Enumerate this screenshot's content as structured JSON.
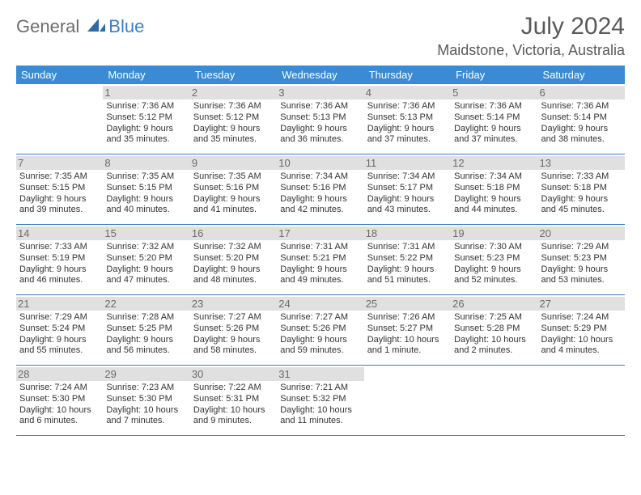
{
  "brand": {
    "part1": "General",
    "part2": "Blue"
  },
  "title": "July 2024",
  "location": "Maidstone, Victoria, Australia",
  "colors": {
    "header_bg": "#3b8bd4",
    "accent": "#3b7fc4",
    "daynum_bg": "#e0e0e0",
    "text": "#333333",
    "muted": "#6a6a6a"
  },
  "day_names": [
    "Sunday",
    "Monday",
    "Tuesday",
    "Wednesday",
    "Thursday",
    "Friday",
    "Saturday"
  ],
  "weeks": [
    [
      {
        "n": "",
        "lines": []
      },
      {
        "n": "1",
        "lines": [
          "Sunrise: 7:36 AM",
          "Sunset: 5:12 PM",
          "Daylight: 9 hours",
          "and 35 minutes."
        ]
      },
      {
        "n": "2",
        "lines": [
          "Sunrise: 7:36 AM",
          "Sunset: 5:12 PM",
          "Daylight: 9 hours",
          "and 35 minutes."
        ]
      },
      {
        "n": "3",
        "lines": [
          "Sunrise: 7:36 AM",
          "Sunset: 5:13 PM",
          "Daylight: 9 hours",
          "and 36 minutes."
        ]
      },
      {
        "n": "4",
        "lines": [
          "Sunrise: 7:36 AM",
          "Sunset: 5:13 PM",
          "Daylight: 9 hours",
          "and 37 minutes."
        ]
      },
      {
        "n": "5",
        "lines": [
          "Sunrise: 7:36 AM",
          "Sunset: 5:14 PM",
          "Daylight: 9 hours",
          "and 37 minutes."
        ]
      },
      {
        "n": "6",
        "lines": [
          "Sunrise: 7:36 AM",
          "Sunset: 5:14 PM",
          "Daylight: 9 hours",
          "and 38 minutes."
        ]
      }
    ],
    [
      {
        "n": "7",
        "lines": [
          "Sunrise: 7:35 AM",
          "Sunset: 5:15 PM",
          "Daylight: 9 hours",
          "and 39 minutes."
        ]
      },
      {
        "n": "8",
        "lines": [
          "Sunrise: 7:35 AM",
          "Sunset: 5:15 PM",
          "Daylight: 9 hours",
          "and 40 minutes."
        ]
      },
      {
        "n": "9",
        "lines": [
          "Sunrise: 7:35 AM",
          "Sunset: 5:16 PM",
          "Daylight: 9 hours",
          "and 41 minutes."
        ]
      },
      {
        "n": "10",
        "lines": [
          "Sunrise: 7:34 AM",
          "Sunset: 5:16 PM",
          "Daylight: 9 hours",
          "and 42 minutes."
        ]
      },
      {
        "n": "11",
        "lines": [
          "Sunrise: 7:34 AM",
          "Sunset: 5:17 PM",
          "Daylight: 9 hours",
          "and 43 minutes."
        ]
      },
      {
        "n": "12",
        "lines": [
          "Sunrise: 7:34 AM",
          "Sunset: 5:18 PM",
          "Daylight: 9 hours",
          "and 44 minutes."
        ]
      },
      {
        "n": "13",
        "lines": [
          "Sunrise: 7:33 AM",
          "Sunset: 5:18 PM",
          "Daylight: 9 hours",
          "and 45 minutes."
        ]
      }
    ],
    [
      {
        "n": "14",
        "lines": [
          "Sunrise: 7:33 AM",
          "Sunset: 5:19 PM",
          "Daylight: 9 hours",
          "and 46 minutes."
        ]
      },
      {
        "n": "15",
        "lines": [
          "Sunrise: 7:32 AM",
          "Sunset: 5:20 PM",
          "Daylight: 9 hours",
          "and 47 minutes."
        ]
      },
      {
        "n": "16",
        "lines": [
          "Sunrise: 7:32 AM",
          "Sunset: 5:20 PM",
          "Daylight: 9 hours",
          "and 48 minutes."
        ]
      },
      {
        "n": "17",
        "lines": [
          "Sunrise: 7:31 AM",
          "Sunset: 5:21 PM",
          "Daylight: 9 hours",
          "and 49 minutes."
        ]
      },
      {
        "n": "18",
        "lines": [
          "Sunrise: 7:31 AM",
          "Sunset: 5:22 PM",
          "Daylight: 9 hours",
          "and 51 minutes."
        ]
      },
      {
        "n": "19",
        "lines": [
          "Sunrise: 7:30 AM",
          "Sunset: 5:23 PM",
          "Daylight: 9 hours",
          "and 52 minutes."
        ]
      },
      {
        "n": "20",
        "lines": [
          "Sunrise: 7:29 AM",
          "Sunset: 5:23 PM",
          "Daylight: 9 hours",
          "and 53 minutes."
        ]
      }
    ],
    [
      {
        "n": "21",
        "lines": [
          "Sunrise: 7:29 AM",
          "Sunset: 5:24 PM",
          "Daylight: 9 hours",
          "and 55 minutes."
        ]
      },
      {
        "n": "22",
        "lines": [
          "Sunrise: 7:28 AM",
          "Sunset: 5:25 PM",
          "Daylight: 9 hours",
          "and 56 minutes."
        ]
      },
      {
        "n": "23",
        "lines": [
          "Sunrise: 7:27 AM",
          "Sunset: 5:26 PM",
          "Daylight: 9 hours",
          "and 58 minutes."
        ]
      },
      {
        "n": "24",
        "lines": [
          "Sunrise: 7:27 AM",
          "Sunset: 5:26 PM",
          "Daylight: 9 hours",
          "and 59 minutes."
        ]
      },
      {
        "n": "25",
        "lines": [
          "Sunrise: 7:26 AM",
          "Sunset: 5:27 PM",
          "Daylight: 10 hours",
          "and 1 minute."
        ]
      },
      {
        "n": "26",
        "lines": [
          "Sunrise: 7:25 AM",
          "Sunset: 5:28 PM",
          "Daylight: 10 hours",
          "and 2 minutes."
        ]
      },
      {
        "n": "27",
        "lines": [
          "Sunrise: 7:24 AM",
          "Sunset: 5:29 PM",
          "Daylight: 10 hours",
          "and 4 minutes."
        ]
      }
    ],
    [
      {
        "n": "28",
        "lines": [
          "Sunrise: 7:24 AM",
          "Sunset: 5:30 PM",
          "Daylight: 10 hours",
          "and 6 minutes."
        ]
      },
      {
        "n": "29",
        "lines": [
          "Sunrise: 7:23 AM",
          "Sunset: 5:30 PM",
          "Daylight: 10 hours",
          "and 7 minutes."
        ]
      },
      {
        "n": "30",
        "lines": [
          "Sunrise: 7:22 AM",
          "Sunset: 5:31 PM",
          "Daylight: 10 hours",
          "and 9 minutes."
        ]
      },
      {
        "n": "31",
        "lines": [
          "Sunrise: 7:21 AM",
          "Sunset: 5:32 PM",
          "Daylight: 10 hours",
          "and 11 minutes."
        ]
      },
      {
        "n": "",
        "lines": []
      },
      {
        "n": "",
        "lines": []
      },
      {
        "n": "",
        "lines": []
      }
    ]
  ]
}
